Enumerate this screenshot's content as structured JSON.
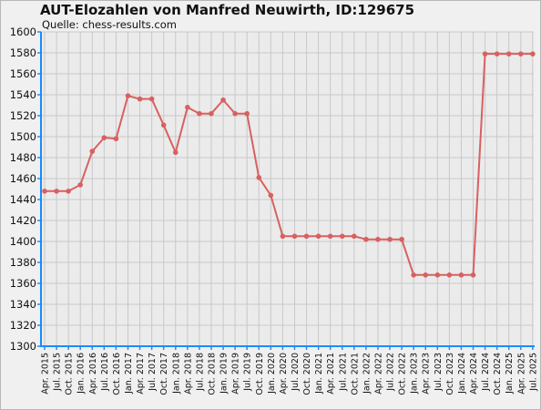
{
  "chart_data": {
    "type": "line",
    "title": "AUT-Elozahlen von Manfred Neuwirth, ID:129675",
    "subtitle": "Quelle: chess-results.com",
    "xlabel": "",
    "ylabel": "",
    "ylim": [
      1300,
      1600
    ],
    "yticks": [
      1300,
      1320,
      1340,
      1360,
      1380,
      1400,
      1420,
      1440,
      1460,
      1480,
      1500,
      1520,
      1540,
      1560,
      1580,
      1600
    ],
    "grid": true,
    "legend": "none",
    "categories": [
      "Apr. 2015",
      "Jul. 2015",
      "Oct. 2015",
      "Jan. 2016",
      "Apr. 2016",
      "Jul. 2016",
      "Oct. 2016",
      "Jan. 2017",
      "Apr. 2017",
      "Jul. 2017",
      "Oct. 2017",
      "Jan. 2018",
      "Apr. 2018",
      "Jul. 2018",
      "Oct. 2018",
      "Jan. 2019",
      "Apr. 2019",
      "Jul. 2019",
      "Oct. 2019",
      "Jan. 2020",
      "Apr. 2020",
      "Jul. 2020",
      "Oct. 2020",
      "Jan. 2021",
      "Apr. 2021",
      "Jul. 2021",
      "Oct. 2021",
      "Jan. 2022",
      "Apr. 2022",
      "Jul. 2022",
      "Oct. 2022",
      "Jan. 2023",
      "Apr. 2023",
      "Jul. 2023",
      "Oct. 2023",
      "Jan. 2024",
      "Apr. 2024",
      "Jul. 2024",
      "Oct. 2024",
      "Jan. 2025",
      "Apr. 2025",
      "Jul. 2025"
    ],
    "series": [
      {
        "color": "#d96060",
        "values": [
          1448,
          1448,
          1448,
          1454,
          1486,
          1499,
          1498,
          1539,
          1536,
          1536,
          1511,
          1485,
          1528,
          1522,
          1522,
          1535,
          1522,
          1522,
          1461,
          1444,
          1405,
          1405,
          1405,
          1405,
          1405,
          1405,
          1405,
          1402,
          1402,
          1402,
          1402,
          1368,
          1368,
          1368,
          1368,
          1368,
          1368,
          1579,
          1579,
          1579,
          1579,
          1579
        ]
      }
    ],
    "colors": {
      "background": "#f0f0f0",
      "plot_background": "#ebebeb",
      "grid": "#c8c8c8",
      "axis": "#1a8cff",
      "line": "#d96060"
    }
  }
}
